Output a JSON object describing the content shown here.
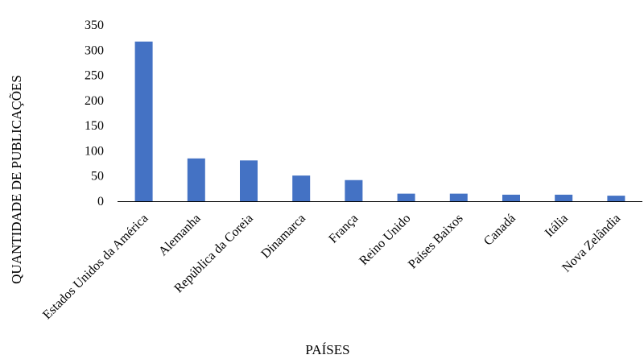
{
  "chart_data": {
    "type": "bar",
    "title": "",
    "xlabel": "PAÍSES",
    "ylabel": "QUANTIDADE  DE PUBLICAÇÕES",
    "ylim": [
      0,
      350
    ],
    "yticks": [
      0,
      50,
      100,
      150,
      200,
      250,
      300,
      350
    ],
    "grid": false,
    "legend": "none",
    "categories": [
      "Estados Unidos da América",
      "Alemanha",
      "República da Coreia",
      "Dinamarca",
      "França",
      "Reino Unido",
      "Países Baixos",
      "Canadá",
      "Itália",
      "Nova Zelândia"
    ],
    "values": [
      317,
      85,
      81,
      51,
      42,
      15,
      15,
      13,
      13,
      11
    ],
    "colors": {
      "bar": "#4472c4",
      "axis": "#000000"
    }
  }
}
